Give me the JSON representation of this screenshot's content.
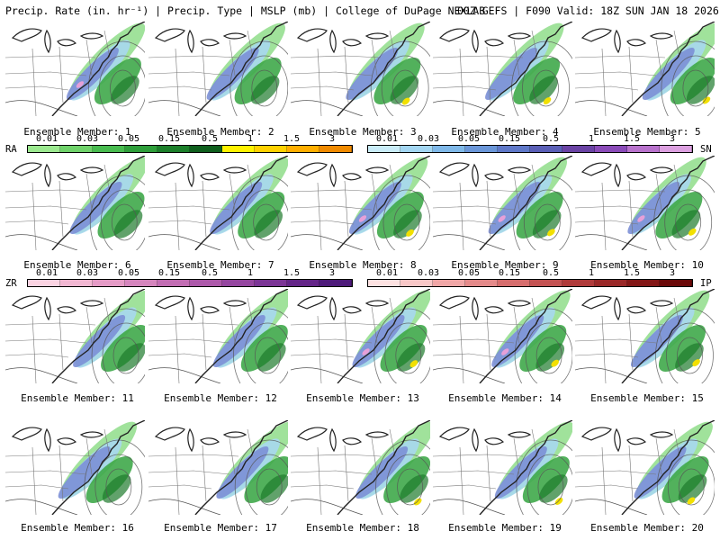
{
  "header": {
    "left": "Precip. Rate (in. hr⁻¹) | Precip. Type | MSLP (mb) | College of DuPage NEXLAB",
    "right": "00Z GEFS | F090 Valid: 18Z SUN JAN 18 2026"
  },
  "member_label_prefix": "Ensemble Member: ",
  "members": [
    1,
    2,
    3,
    4,
    5,
    6,
    7,
    8,
    9,
    10,
    11,
    12,
    13,
    14,
    15,
    16,
    17,
    18,
    19,
    20
  ],
  "member_labels": [
    "Ensemble Member: 1",
    "Ensemble Member: 2",
    "Ensemble Member: 3",
    "Ensemble Member: 4",
    "Ensemble Member: 5",
    "Ensemble Member: 6",
    "Ensemble Member: 7",
    "Ensemble Member: 8",
    "Ensemble Member: 9",
    "Ensemble Member: 10",
    "Ensemble Member: 11",
    "Ensemble Member: 12",
    "Ensemble Member: 13",
    "Ensemble Member: 14",
    "Ensemble Member: 15",
    "Ensemble Member: 16",
    "Ensemble Member: 17",
    "Ensemble Member: 18",
    "Ensemble Member: 19",
    "Ensemble Member: 20"
  ],
  "legends": {
    "rain": {
      "label": "RA",
      "ticks": [
        "0.01",
        "0.03",
        "0.05",
        "0.15",
        "0.5",
        "1",
        "1.5",
        "3"
      ],
      "colors": [
        "#9be88f",
        "#6fd26a",
        "#48bb4f",
        "#2e9e3a",
        "#1c7f2a",
        "#0f5f1d",
        "#fff200",
        "#ffd100",
        "#ffae00",
        "#f08a00"
      ]
    },
    "snow": {
      "label": "SN",
      "ticks": [
        "0.01",
        "0.03",
        "0.05",
        "0.15",
        "0.5",
        "1",
        "1.5",
        "3"
      ],
      "colors": [
        "#c9ecf8",
        "#a3d6f2",
        "#7fb8e8",
        "#6a96d8",
        "#5f78c8",
        "#5a5fb6",
        "#6a43a4",
        "#8a4bb8",
        "#b872cc",
        "#dca0e0"
      ]
    },
    "freezing_rain": {
      "label": "ZR",
      "ticks": [
        "0.01",
        "0.03",
        "0.05",
        "0.15",
        "0.5",
        "1",
        "1.5",
        "3"
      ],
      "colors": [
        "#fbd3e2",
        "#f2b7d2",
        "#e59bc6",
        "#d585bd",
        "#c26db3",
        "#ad59aa",
        "#9546a0",
        "#7c3596",
        "#642588",
        "#4e1a7a"
      ]
    },
    "ice_pellets": {
      "label": "IP",
      "ticks": [
        "0.01",
        "0.03",
        "0.05",
        "0.15",
        "0.5",
        "1",
        "1.5",
        "3"
      ],
      "colors": [
        "#fde1e1",
        "#f8c6c6",
        "#f0a6a6",
        "#e48a8a",
        "#d66d6d",
        "#c45252",
        "#b03b3b",
        "#9a2828",
        "#831717",
        "#6b0909"
      ]
    }
  },
  "colors": {
    "rain_light": "#8fdd8a",
    "rain_mid": "#3fa84a",
    "rain_heavy": "#1e7a2c",
    "rain_extreme": "#f2e000",
    "snow_light": "#a7d8ef",
    "snow_mid": "#7c8fd6",
    "snow_heavy": "#5960b8",
    "mix": "#e6a0d8",
    "isobar": "#555555",
    "border": "#222222"
  }
}
